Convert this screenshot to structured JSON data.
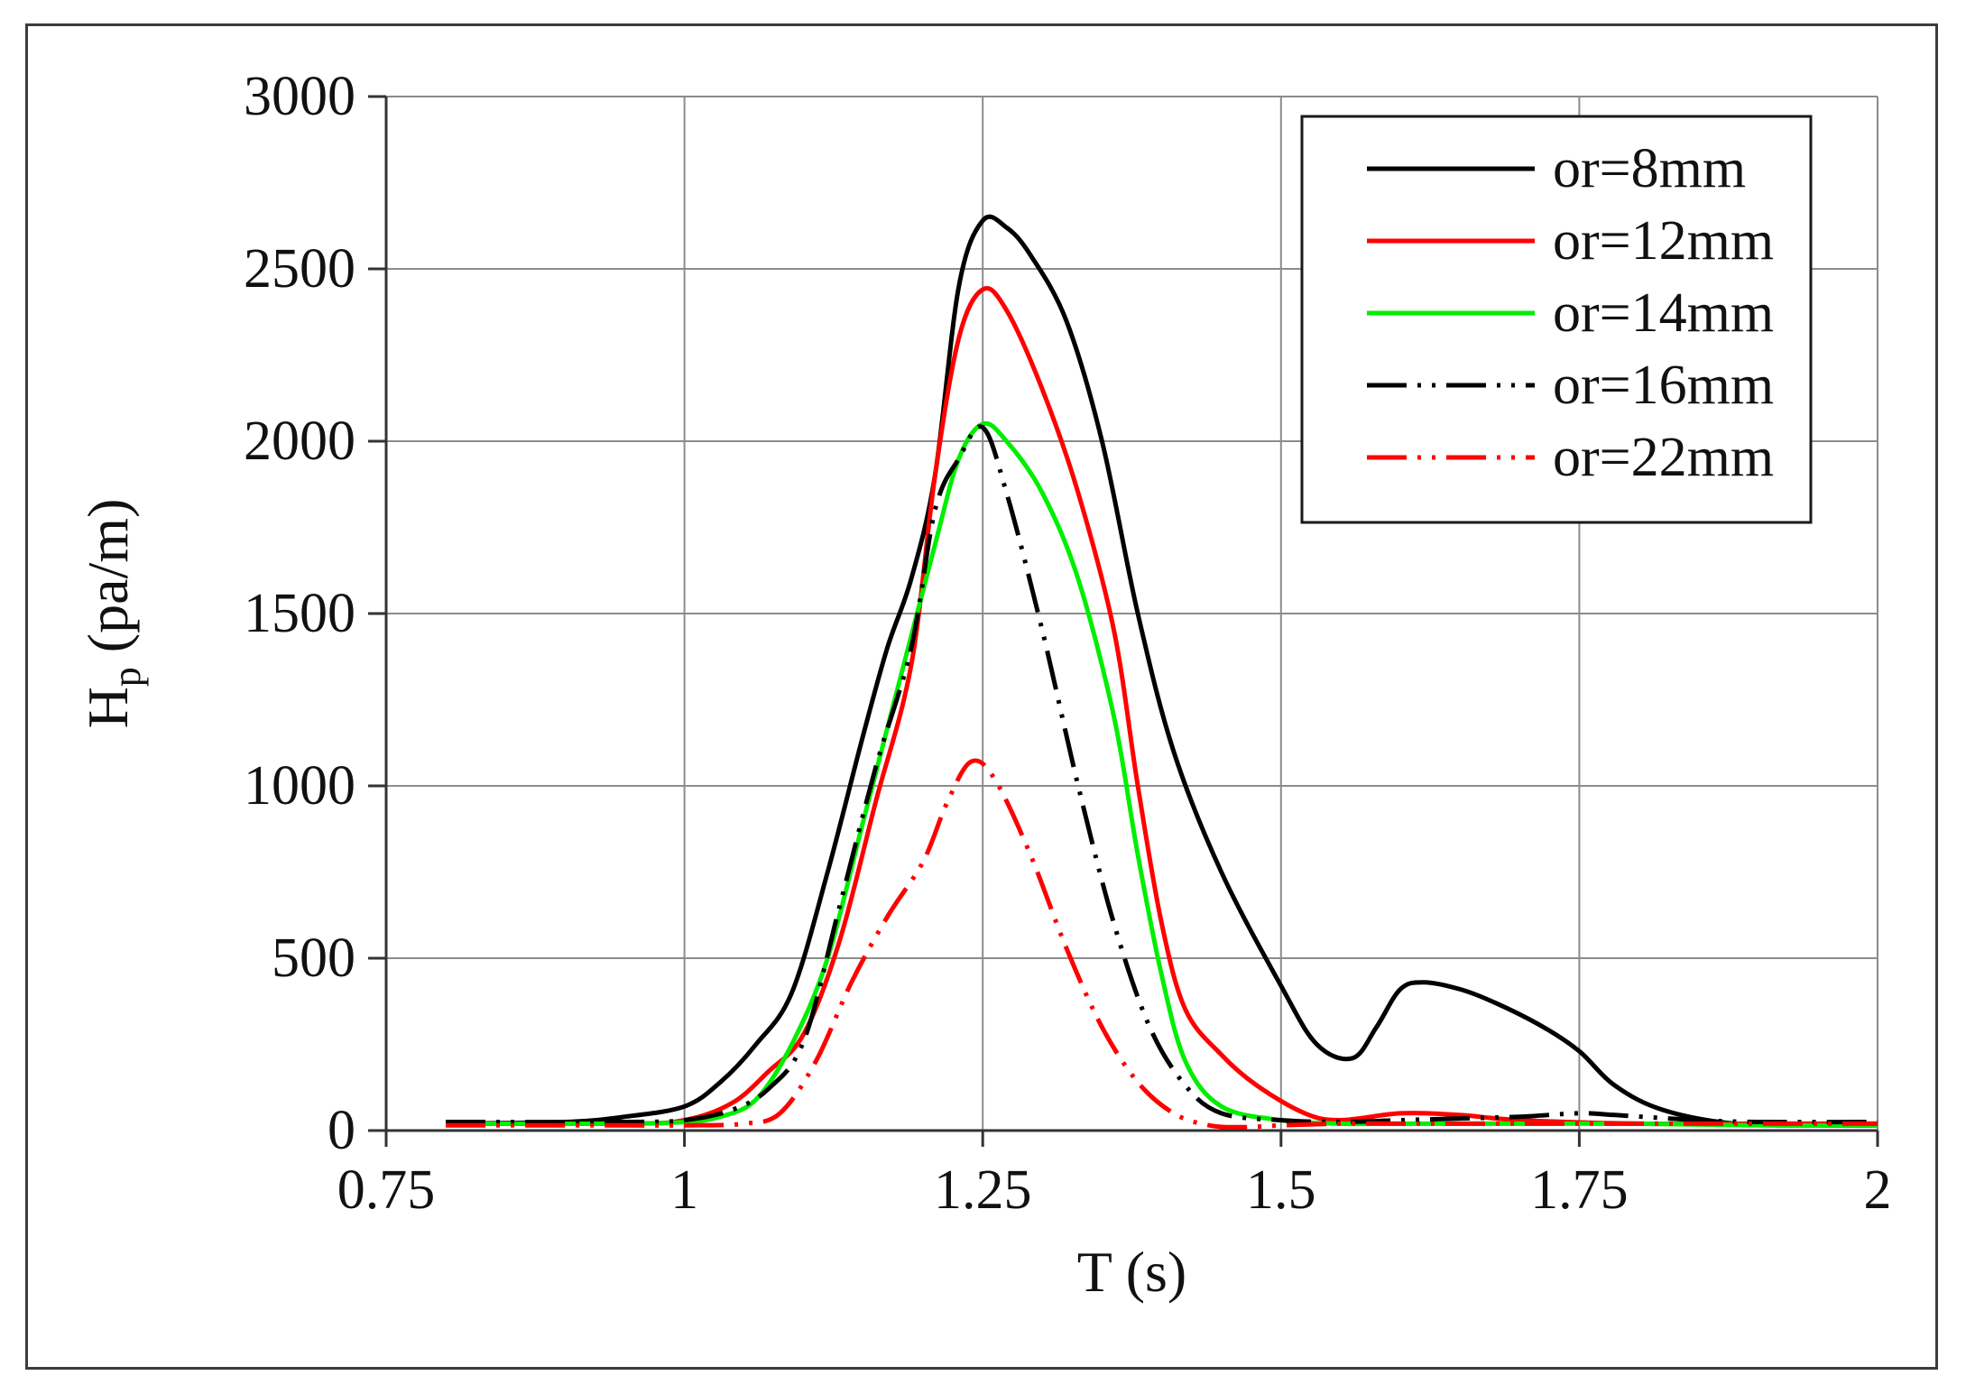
{
  "chart_data": {
    "type": "line",
    "title": "",
    "xlabel": "T (s)",
    "ylabel": {
      "main": "H",
      "sub": "p",
      "unit": " (pa/m)"
    },
    "xlim": [
      0.75,
      2
    ],
    "ylim": [
      0,
      3000
    ],
    "x_ticks": [
      0.75,
      1,
      1.25,
      1.5,
      1.75,
      2
    ],
    "x_tick_labels": [
      "0.75",
      "1",
      "1.25",
      "1.5",
      "1.75",
      "2"
    ],
    "y_ticks": [
      0,
      500,
      1000,
      1500,
      2000,
      2500,
      3000
    ],
    "y_tick_labels": [
      "0",
      "500",
      "1000",
      "1500",
      "2000",
      "2500",
      "3000"
    ],
    "grid": true,
    "legend_position": "top-right",
    "series": [
      {
        "name": "or=8mm",
        "color": "#000000",
        "dash": "solid",
        "x": [
          0.8,
          0.9,
          0.95,
          1.0,
          1.03,
          1.06,
          1.09,
          1.12,
          1.15,
          1.17,
          1.19,
          1.21,
          1.23,
          1.25,
          1.27,
          1.29,
          1.32,
          1.35,
          1.38,
          1.41,
          1.45,
          1.5,
          1.53,
          1.56,
          1.58,
          1.6,
          1.62,
          1.65,
          1.68,
          1.72,
          1.75,
          1.78,
          1.82,
          1.88,
          1.95,
          2.0
        ],
        "y": [
          20,
          25,
          40,
          70,
          140,
          250,
          400,
          750,
          1150,
          1400,
          1600,
          1900,
          2450,
          2640,
          2620,
          2540,
          2350,
          2000,
          1500,
          1100,
          750,
          420,
          250,
          210,
          300,
          410,
          430,
          410,
          370,
          300,
          230,
          130,
          60,
          20,
          15,
          15
        ]
      },
      {
        "name": "or=12mm",
        "color": "#ff0000",
        "dash": "solid",
        "x": [
          0.8,
          0.95,
          1.0,
          1.04,
          1.07,
          1.1,
          1.13,
          1.16,
          1.19,
          1.21,
          1.23,
          1.25,
          1.27,
          1.3,
          1.33,
          1.36,
          1.38,
          1.4,
          1.42,
          1.45,
          1.48,
          1.52,
          1.55,
          1.6,
          1.65,
          1.7,
          1.8,
          1.9,
          2.0
        ],
        "y": [
          20,
          20,
          30,
          80,
          170,
          280,
          550,
          950,
          1350,
          1900,
          2300,
          2440,
          2380,
          2150,
          1850,
          1450,
          1000,
          600,
          350,
          220,
          130,
          50,
          30,
          50,
          45,
          30,
          20,
          20,
          20
        ]
      },
      {
        "name": "or=14mm",
        "color": "#00ee00",
        "dash": "solid",
        "x": [
          0.8,
          0.95,
          1.0,
          1.03,
          1.06,
          1.09,
          1.12,
          1.15,
          1.18,
          1.21,
          1.23,
          1.25,
          1.27,
          1.3,
          1.33,
          1.36,
          1.38,
          1.4,
          1.42,
          1.45,
          1.5,
          1.55,
          1.6,
          1.7,
          1.8,
          1.9,
          2.0
        ],
        "y": [
          20,
          20,
          25,
          40,
          90,
          250,
          500,
          900,
          1300,
          1700,
          1950,
          2050,
          2000,
          1850,
          1600,
          1200,
          800,
          450,
          200,
          70,
          30,
          20,
          20,
          20,
          20,
          15,
          15
        ]
      },
      {
        "name": "or=16mm",
        "color": "#000000",
        "dash": "dash-dot-dot",
        "x": [
          0.8,
          0.95,
          1.0,
          1.04,
          1.07,
          1.1,
          1.13,
          1.16,
          1.19,
          1.21,
          1.23,
          1.25,
          1.27,
          1.3,
          1.33,
          1.36,
          1.39,
          1.42,
          1.45,
          1.5,
          1.55,
          1.6,
          1.65,
          1.7,
          1.75,
          1.78,
          1.85,
          1.9,
          2.0
        ],
        "y": [
          25,
          25,
          30,
          60,
          120,
          260,
          650,
          1050,
          1400,
          1800,
          1950,
          2040,
          1850,
          1450,
          1000,
          600,
          300,
          130,
          50,
          30,
          25,
          30,
          35,
          40,
          50,
          45,
          30,
          25,
          25
        ]
      },
      {
        "name": "or=22mm",
        "color": "#ff0000",
        "dash": "dash-dot-dot",
        "x": [
          0.8,
          0.95,
          1.0,
          1.05,
          1.08,
          1.11,
          1.14,
          1.17,
          1.2,
          1.22,
          1.24,
          1.26,
          1.29,
          1.32,
          1.35,
          1.38,
          1.41,
          1.44,
          1.47,
          1.5,
          1.55,
          1.6,
          1.7,
          1.8,
          1.9,
          2.0
        ],
        "y": [
          15,
          15,
          15,
          20,
          50,
          200,
          430,
          620,
          780,
          950,
          1070,
          1020,
          800,
          530,
          300,
          140,
          50,
          15,
          10,
          15,
          20,
          20,
          20,
          20,
          20,
          20
        ]
      }
    ]
  }
}
